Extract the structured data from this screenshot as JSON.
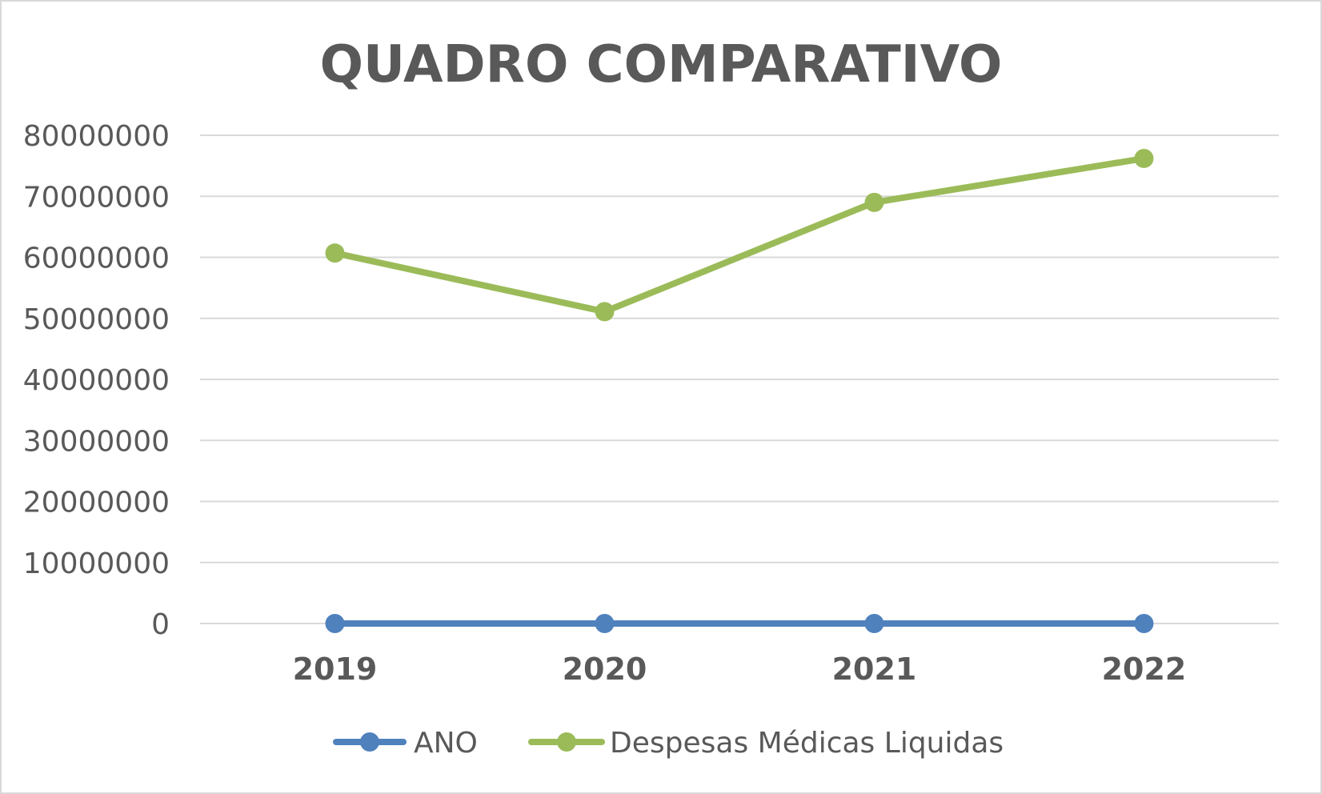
{
  "chart_data": {
    "type": "line",
    "title": "QUADRO COMPARATIVO",
    "categories": [
      "2019",
      "2020",
      "2021",
      "2022"
    ],
    "ylim": [
      0,
      80000000
    ],
    "yticks": [
      "0",
      "10000000",
      "20000000",
      "30000000",
      "40000000",
      "50000000",
      "60000000",
      "70000000",
      "80000000"
    ],
    "grid": true,
    "legend_position": "bottom",
    "series": [
      {
        "name": "ANO",
        "color": "#4f81bd",
        "values": [
          2019,
          2020,
          2021,
          2022
        ]
      },
      {
        "name": "Despesas Médicas Liquidas",
        "color": "#9bbb59",
        "values": [
          60700000,
          51100000,
          69000000,
          76200000
        ]
      }
    ]
  }
}
